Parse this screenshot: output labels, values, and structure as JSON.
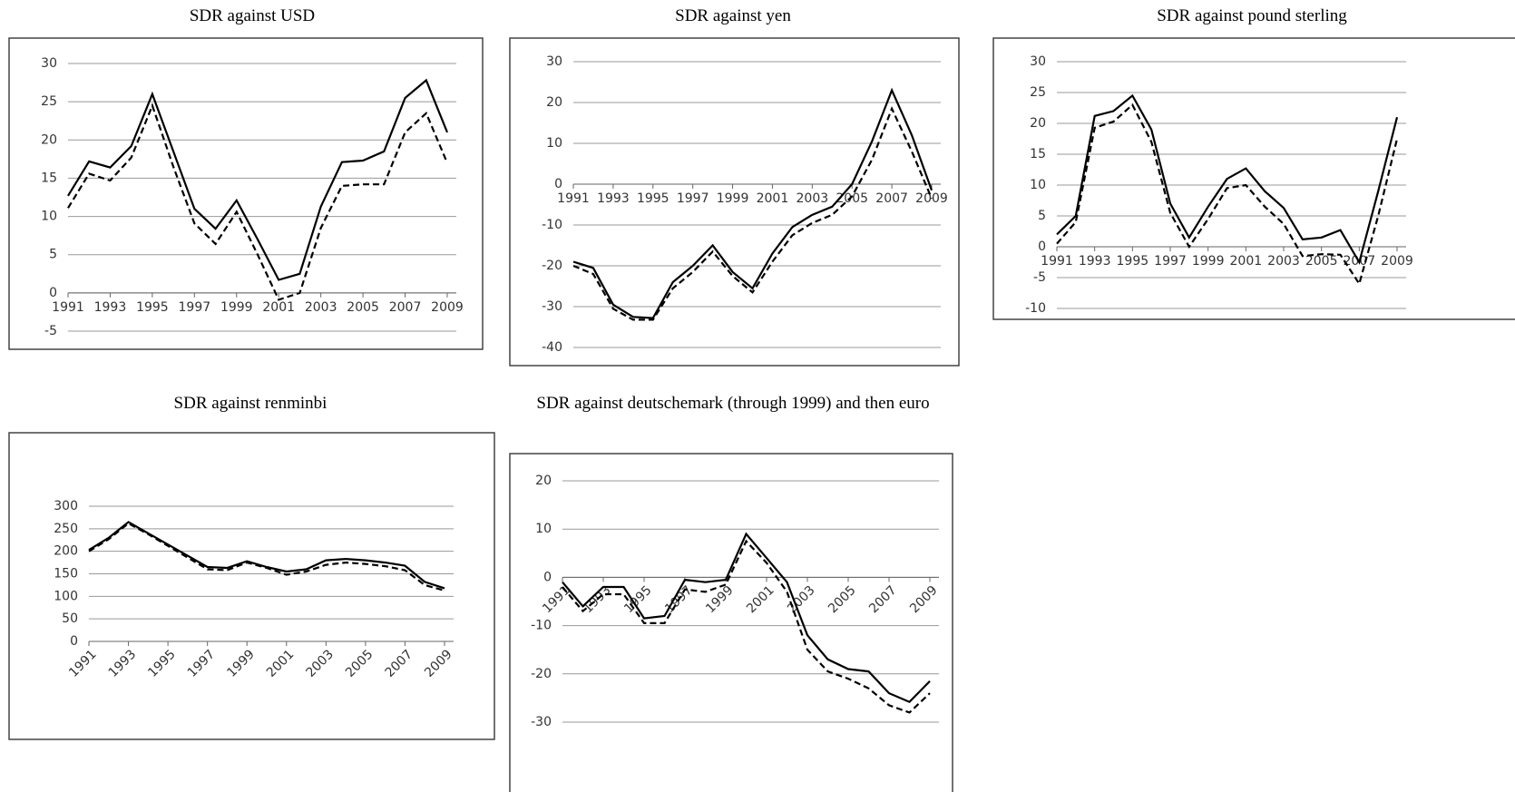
{
  "chart_data": [
    {
      "type": "line",
      "title": "SDR against USD",
      "x": [
        1991,
        1992,
        1993,
        1994,
        1995,
        1996,
        1997,
        1998,
        1999,
        2000,
        2001,
        2002,
        2003,
        2004,
        2005,
        2006,
        2007,
        2008,
        2009
      ],
      "xlim": [
        1991,
        2009
      ],
      "xticks": [
        1991,
        1993,
        1995,
        1997,
        1999,
        2001,
        2003,
        2005,
        2007,
        2009
      ],
      "xtick_rotation": 0,
      "ylim": [
        -5,
        30
      ],
      "yticks": [
        -5,
        0,
        5,
        10,
        15,
        20,
        25,
        30
      ],
      "grid": true,
      "series": [
        {
          "color": "#000000",
          "line_style": "solid",
          "values": [
            12.7,
            17.2,
            16.4,
            19.2,
            26,
            18.5,
            11,
            8.4,
            12.1,
            7,
            1.7,
            2.5,
            11.3,
            17.1,
            17.3,
            18.5,
            25.5,
            27.8,
            21
          ]
        },
        {
          "color": "#000000",
          "line_style": "dashed",
          "values": [
            11.1,
            15.6,
            14.7,
            17.7,
            24.5,
            16.5,
            9.1,
            6.4,
            10.6,
            5,
            -0.9,
            0,
            8.5,
            14,
            14.2,
            14.2,
            21,
            23.5,
            17
          ]
        }
      ]
    },
    {
      "type": "line",
      "title": "SDR against yen",
      "x": [
        1991,
        1992,
        1993,
        1994,
        1995,
        1996,
        1997,
        1998,
        1999,
        2000,
        2001,
        2002,
        2003,
        2004,
        2005,
        2006,
        2007,
        2008,
        2009
      ],
      "xlim": [
        1991,
        2009
      ],
      "xticks": [
        1991,
        1993,
        1995,
        1997,
        1999,
        2001,
        2003,
        2005,
        2007,
        2009
      ],
      "xtick_rotation": 0,
      "ylim": [
        -40,
        30
      ],
      "yticks": [
        -40,
        -30,
        -20,
        -10,
        0,
        10,
        20,
        30
      ],
      "grid": true,
      "series": [
        {
          "color": "#000000",
          "line_style": "solid",
          "values": [
            -19,
            -20.5,
            -29.5,
            -32.5,
            -32.8,
            -24,
            -20,
            -15,
            -21.5,
            -25.5,
            -17,
            -10.5,
            -7.5,
            -5.5,
            0,
            10.5,
            23,
            12,
            -1.5
          ]
        },
        {
          "color": "#000000",
          "line_style": "dashed",
          "values": [
            -20,
            -22,
            -30.5,
            -33.2,
            -33.2,
            -25.5,
            -21.5,
            -16.5,
            -22.5,
            -26.5,
            -19,
            -12.5,
            -9.5,
            -7.5,
            -3,
            6,
            18.5,
            8,
            -3.5
          ]
        }
      ]
    },
    {
      "type": "line",
      "title": "SDR against pound sterling",
      "x": [
        1991,
        1992,
        1993,
        1994,
        1995,
        1996,
        1997,
        1998,
        1999,
        2000,
        2001,
        2002,
        2003,
        2004,
        2005,
        2006,
        2007,
        2008,
        2009
      ],
      "xlim": [
        1991,
        2009
      ],
      "xticks": [
        1991,
        1993,
        1995,
        1997,
        1999,
        2001,
        2003,
        2005,
        2007,
        2009
      ],
      "xtick_rotation": 0,
      "ylim": [
        -10,
        30
      ],
      "yticks": [
        -10,
        -5,
        0,
        5,
        10,
        15,
        20,
        25,
        30
      ],
      "grid": true,
      "series": [
        {
          "color": "#000000",
          "line_style": "solid",
          "values": [
            2,
            5,
            21.2,
            22,
            24.5,
            19,
            7,
            1.5,
            6.5,
            11,
            12.7,
            9,
            6.3,
            1.2,
            1.5,
            2.7,
            -2.5,
            9,
            21
          ]
        },
        {
          "color": "#000000",
          "line_style": "dashed",
          "values": [
            0.5,
            4,
            19.3,
            20.3,
            23,
            17,
            5.5,
            0,
            4.5,
            9.5,
            10,
            6.5,
            3.7,
            -1.5,
            -1.2,
            -1.3,
            -6,
            5,
            17.5
          ]
        }
      ]
    },
    {
      "type": "line",
      "title": "SDR against renminbi",
      "x": [
        1991,
        1992,
        1993,
        1994,
        1995,
        1996,
        1997,
        1998,
        1999,
        2000,
        2001,
        2002,
        2003,
        2004,
        2005,
        2006,
        2007,
        2008,
        2009
      ],
      "xlim": [
        1991,
        2009
      ],
      "xticks": [
        1991,
        1993,
        1995,
        1997,
        1999,
        2001,
        2003,
        2005,
        2007,
        2009
      ],
      "xtick_rotation": -45,
      "ylim": [
        0,
        300
      ],
      "yticks": [
        0,
        50,
        100,
        150,
        200,
        250,
        300
      ],
      "grid": true,
      "series": [
        {
          "color": "#000000",
          "line_style": "solid",
          "values": [
            203,
            230,
            265,
            240,
            215,
            190,
            165,
            163,
            178,
            165,
            155,
            160,
            180,
            183,
            180,
            175,
            168,
            132,
            118
          ]
        },
        {
          "color": "#000000",
          "line_style": "dashed",
          "values": [
            200,
            227,
            262,
            238,
            212,
            186,
            160,
            158,
            175,
            163,
            148,
            155,
            170,
            175,
            172,
            167,
            158,
            125,
            113
          ]
        }
      ]
    },
    {
      "type": "line",
      "title": "SDR against deutschemark (through 1999) and then euro",
      "x": [
        1991,
        1992,
        1993,
        1994,
        1995,
        1996,
        1997,
        1998,
        1999,
        2000,
        2001,
        2002,
        2003,
        2004,
        2005,
        2006,
        2007,
        2008,
        2009
      ],
      "xlim": [
        1991,
        2009
      ],
      "xticks": [
        1991,
        1993,
        1995,
        1997,
        1999,
        2001,
        2003,
        2005,
        2007,
        2009
      ],
      "xtick_rotation": -45,
      "ylim": [
        -30,
        20
      ],
      "yticks": [
        -30,
        -20,
        -10,
        0,
        10,
        20
      ],
      "grid": true,
      "series": [
        {
          "color": "#000000",
          "line_style": "solid",
          "values": [
            -1,
            -6,
            -2,
            -2,
            -8.5,
            -8,
            -0.5,
            -1,
            -0.5,
            9,
            4,
            -1,
            -12,
            -17,
            -19,
            -19.5,
            -24,
            -25.8,
            -21.5
          ]
        },
        {
          "color": "#000000",
          "line_style": "dashed",
          "values": [
            -2,
            -7,
            -3.5,
            -3.5,
            -9.5,
            -9.5,
            -2.5,
            -3,
            -1.5,
            7.5,
            3,
            -3,
            -15,
            -19.5,
            -21,
            -23,
            -26.5,
            -28,
            -24
          ]
        }
      ]
    }
  ]
}
